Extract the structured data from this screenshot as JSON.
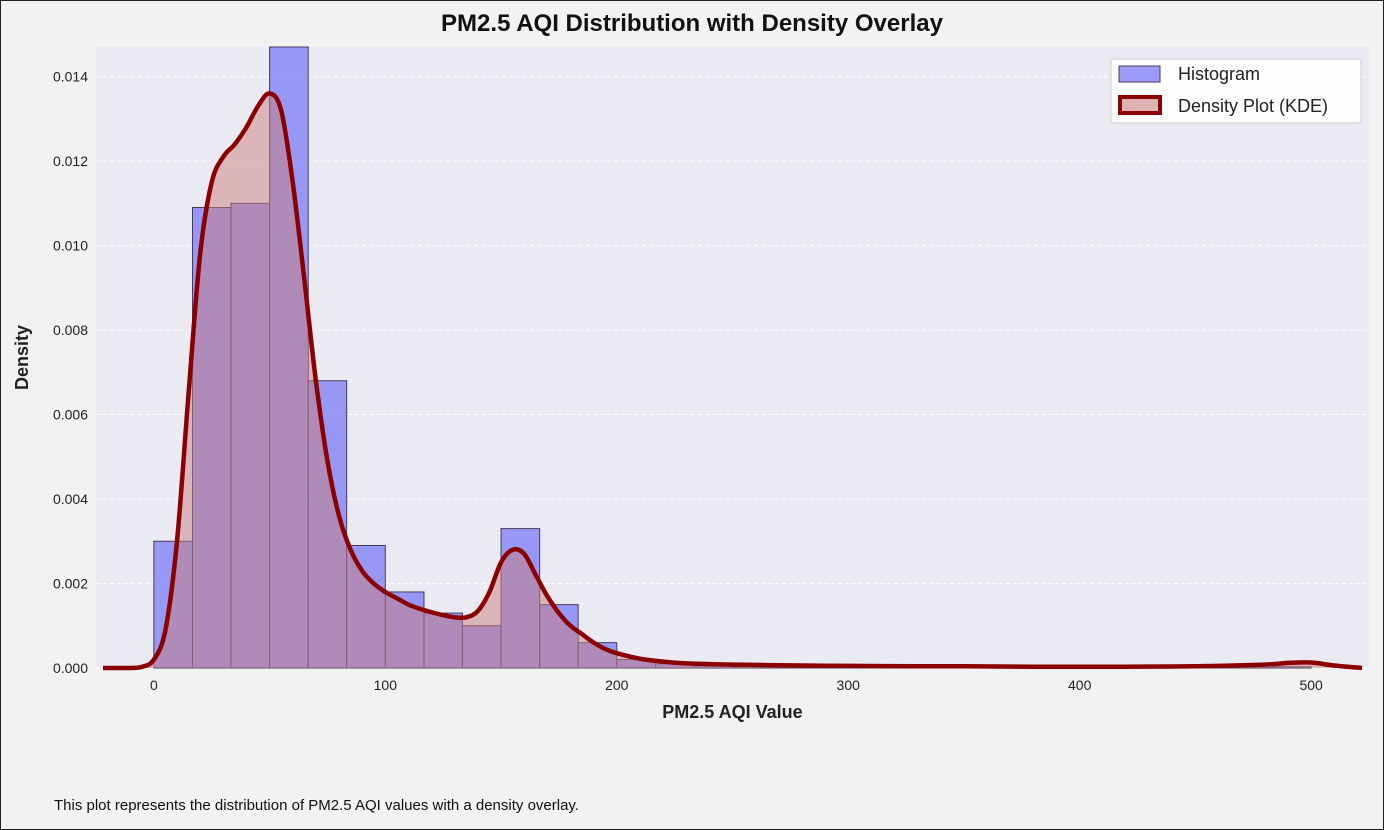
{
  "caption": "This plot represents the distribution of PM2.5 AQI values with a density overlay.",
  "chart_data": {
    "type": "bar",
    "title": "PM2.5 AQI Distribution with Density Overlay",
    "xlabel": "PM2.5 AQI Value",
    "ylabel": "Density",
    "xlim": [
      -25,
      525
    ],
    "ylim": [
      0,
      0.0147
    ],
    "xticks": [
      0,
      100,
      200,
      300,
      400,
      500
    ],
    "yticks": [
      0.0,
      0.002,
      0.004,
      0.006,
      0.008,
      0.01,
      0.012,
      0.014
    ],
    "xtick_labels": [
      "0",
      "100",
      "200",
      "300",
      "400",
      "500"
    ],
    "ytick_labels": [
      "0.000",
      "0.002",
      "0.004",
      "0.006",
      "0.008",
      "0.010",
      "0.012",
      "0.014"
    ],
    "grid": "horizontal dashed",
    "legend_position": "top-right",
    "series": [
      {
        "name": "Histogram",
        "kind": "histogram",
        "color": "#7b7bf5",
        "bin_edges": [
          0,
          16.7,
          33.3,
          50,
          66.7,
          83.3,
          100,
          116.7,
          133.3,
          150,
          166.7,
          183.3,
          200,
          216.7,
          233.3,
          250,
          266.7,
          283.3,
          300,
          316.7,
          333.3,
          350,
          366.7,
          383.3,
          400,
          416.7,
          433.3,
          450,
          466.7,
          483.3,
          500
        ],
        "values": [
          0.003,
          0.0109,
          0.011,
          0.0147,
          0.0068,
          0.0029,
          0.0018,
          0.0013,
          0.001,
          0.0033,
          0.0015,
          0.0006,
          0.0002,
          0.0001,
          5e-05,
          3e-05,
          2e-05,
          2e-05,
          1e-05,
          1e-05,
          1e-05,
          1e-05,
          1e-05,
          1e-05,
          1e-05,
          1e-05,
          1e-05,
          1e-05,
          1e-05,
          3e-05
        ]
      },
      {
        "name": "Density Plot (KDE)",
        "kind": "kde",
        "color": "#8b0000",
        "fill": "#c98080",
        "x": [
          -22,
          -10,
          -5,
          0,
          5,
          10,
          15,
          20,
          25,
          30,
          35,
          40,
          45,
          50,
          55,
          60,
          65,
          70,
          75,
          80,
          85,
          90,
          95,
          100,
          105,
          110,
          115,
          120,
          125,
          130,
          135,
          140,
          145,
          150,
          155,
          160,
          165,
          170,
          175,
          180,
          185,
          190,
          195,
          200,
          210,
          220,
          230,
          250,
          280,
          300,
          330,
          350,
          380,
          400,
          420,
          450,
          480,
          490,
          500,
          510,
          522
        ],
        "y": [
          0,
          0,
          3e-05,
          0.0002,
          0.0009,
          0.003,
          0.0065,
          0.0098,
          0.0115,
          0.0121,
          0.0124,
          0.0128,
          0.0133,
          0.0136,
          0.0132,
          0.0115,
          0.0092,
          0.0068,
          0.0049,
          0.0036,
          0.0028,
          0.0023,
          0.002,
          0.0018,
          0.00165,
          0.0015,
          0.0014,
          0.00132,
          0.00125,
          0.0012,
          0.0012,
          0.00135,
          0.0018,
          0.0025,
          0.0028,
          0.0027,
          0.0022,
          0.0017,
          0.0013,
          0.001,
          0.0008,
          0.0006,
          0.00045,
          0.00035,
          0.00022,
          0.00015,
          0.00011,
          8e-05,
          6e-05,
          5e-05,
          4e-05,
          4e-05,
          3e-05,
          3e-05,
          3e-05,
          4e-05,
          8e-05,
          0.00012,
          0.00013,
          6e-05,
          0.0
        ]
      }
    ]
  }
}
